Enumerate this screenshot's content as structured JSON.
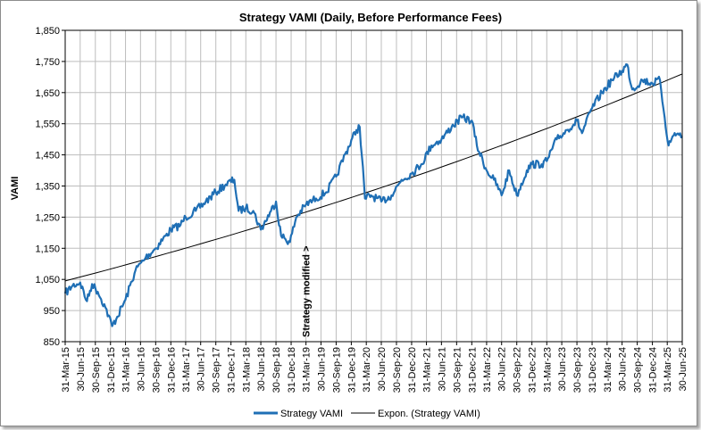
{
  "chart_data": {
    "type": "line",
    "title": "Strategy VAMI (Daily, Before Performance Fees)",
    "xlabel": "",
    "ylabel": "VAMI",
    "ylim": [
      850,
      1850
    ],
    "yticks": [
      850,
      950,
      1050,
      1150,
      1250,
      1350,
      1450,
      1550,
      1650,
      1750,
      1850
    ],
    "ytick_labels": [
      "850",
      "950",
      "1,050",
      "1,150",
      "1,250",
      "1,350",
      "1,450",
      "1,550",
      "1,650",
      "1,750",
      "1,850"
    ],
    "xlim": [
      "2015-03-31",
      "2025-06-30"
    ],
    "xticks": [
      "31-Mar-15",
      "30-Jun-15",
      "30-Sep-15",
      "31-Dec-15",
      "31-Mar-16",
      "30-Jun-16",
      "30-Sep-16",
      "31-Dec-16",
      "31-Mar-17",
      "30-Jun-17",
      "30-Sep-17",
      "31-Dec-17",
      "31-Mar-18",
      "30-Jun-18",
      "30-Sep-18",
      "31-Dec-18",
      "31-Mar-19",
      "30-Jun-19",
      "30-Sep-19",
      "31-Dec-19",
      "31-Mar-20",
      "30-Jun-20",
      "30-Sep-20",
      "31-Dec-20",
      "31-Mar-21",
      "30-Jun-21",
      "30-Sep-21",
      "31-Dec-21",
      "31-Mar-22",
      "30-Jun-22",
      "30-Sep-22",
      "31-Dec-22",
      "31-Mar-23",
      "30-Jun-23",
      "30-Sep-23",
      "31-Dec-23",
      "31-Mar-24",
      "30-Jun-24",
      "30-Sep-24",
      "31-Dec-24",
      "31-Mar-25",
      "30-Jun-25"
    ],
    "grid": true,
    "legend_position": "bottom",
    "series": [
      {
        "name": "Strategy VAMI",
        "color": "#1f6fb5",
        "x": [
          "2015-03-31",
          "2015-05-15",
          "2015-06-30",
          "2015-08-10",
          "2015-09-10",
          "2015-10-15",
          "2015-11-30",
          "2016-01-10",
          "2016-02-10",
          "2016-03-31",
          "2016-05-31",
          "2016-07-31",
          "2016-09-30",
          "2016-11-30",
          "2016-12-31",
          "2017-02-28",
          "2017-03-31",
          "2017-05-31",
          "2017-07-31",
          "2017-09-30",
          "2017-11-30",
          "2018-01-20",
          "2018-02-15",
          "2018-03-31",
          "2018-05-15",
          "2018-06-30",
          "2018-08-31",
          "2018-09-30",
          "2018-10-31",
          "2018-12-24",
          "2019-01-31",
          "2019-03-31",
          "2019-05-31",
          "2019-07-31",
          "2019-09-30",
          "2019-11-30",
          "2020-01-31",
          "2020-02-20",
          "2020-03-23",
          "2020-04-30",
          "2020-06-30",
          "2020-08-31",
          "2020-10-31",
          "2020-12-31",
          "2021-02-28",
          "2021-04-30",
          "2021-06-30",
          "2021-08-31",
          "2021-10-31",
          "2021-12-31",
          "2022-01-31",
          "2022-03-31",
          "2022-05-15",
          "2022-06-30",
          "2022-08-15",
          "2022-09-30",
          "2022-11-30",
          "2022-12-31",
          "2023-02-28",
          "2023-03-31",
          "2023-05-31",
          "2023-07-31",
          "2023-09-30",
          "2023-10-31",
          "2023-12-31",
          "2024-02-29",
          "2024-04-30",
          "2024-06-30",
          "2024-07-31",
          "2024-08-31",
          "2024-10-31",
          "2024-12-31",
          "2025-02-15",
          "2025-03-15",
          "2025-04-08",
          "2025-05-15",
          "2025-06-30"
        ],
        "values": [
          1005,
          1030,
          1040,
          980,
          1035,
          1010,
          960,
          900,
          930,
          985,
          1080,
          1120,
          1150,
          1190,
          1210,
          1225,
          1250,
          1270,
          1300,
          1330,
          1355,
          1370,
          1270,
          1280,
          1270,
          1210,
          1270,
          1300,
          1190,
          1170,
          1250,
          1290,
          1310,
          1330,
          1380,
          1460,
          1530,
          1540,
          1310,
          1320,
          1300,
          1320,
          1370,
          1390,
          1420,
          1480,
          1500,
          1540,
          1570,
          1560,
          1480,
          1400,
          1370,
          1320,
          1400,
          1320,
          1400,
          1420,
          1420,
          1430,
          1500,
          1530,
          1560,
          1520,
          1600,
          1650,
          1690,
          1720,
          1740,
          1660,
          1690,
          1680,
          1690,
          1570,
          1480,
          1520,
          1510
        ]
      },
      {
        "name": "Expon. (Strategy VAMI)",
        "color": "#000000",
        "x": [
          "2015-03-31",
          "2025-06-30"
        ],
        "values": [
          1045,
          1710
        ]
      }
    ],
    "annotations": [
      {
        "text": "Strategy modified >",
        "x": "2019-03-31",
        "y": 850
      }
    ]
  }
}
